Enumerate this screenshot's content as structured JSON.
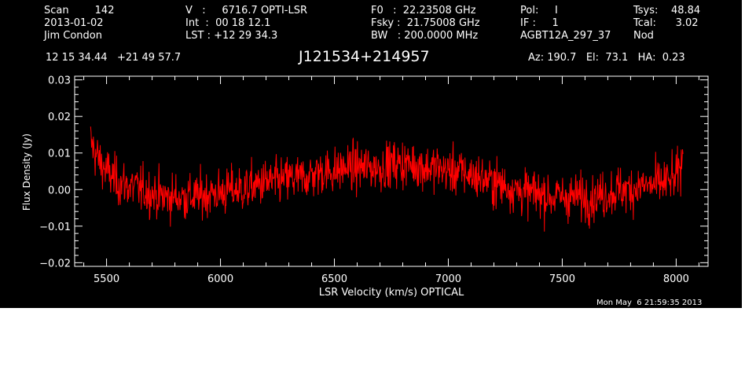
{
  "header": {
    "col1": [
      "Scan        142",
      "2013-01-02",
      "Jim Condon"
    ],
    "col2": [
      "V   :     6716.7 OPTI-LSR",
      "Int  :  00 18 12.1",
      "LST : +12 29 34.3"
    ],
    "col3": [
      "F0   :  22.23508 GHz",
      "Fsky :  21.75008 GHz",
      "BW   : 200.0000 MHz"
    ],
    "col4": [
      "Pol:     I",
      "IF :     1",
      "AGBT12A_297_37"
    ],
    "col5": [
      "Tsys:    48.84",
      "Tcal:      3.02",
      "Nod"
    ],
    "coords": "12 15 34.44   +21 49 57.7",
    "source": "J121534+214957",
    "pointing": "Az: 190.7   El:  73.1   HA:  0.23",
    "timestamp": "Mon May  6 21:59:35 2013"
  },
  "chart_data": {
    "type": "line",
    "title": "J121534+214957",
    "xlabel": "LSR Velocity (km/s) OPTICAL",
    "ylabel": "Flux Density (Jy)",
    "xlim": [
      5360,
      8140
    ],
    "ylim": [
      -0.021,
      0.031
    ],
    "xticks": [
      5500,
      6000,
      6500,
      7000,
      7500,
      8000
    ],
    "xtick_labels": [
      "5500",
      "6000",
      "6500",
      "7000",
      "7500",
      "8000"
    ],
    "yticks": [
      -0.02,
      -0.01,
      0.0,
      0.01,
      0.02,
      0.03
    ],
    "ytick_labels": [
      "−0.02",
      "−0.01",
      "0.00",
      "0.01",
      "0.02",
      "0.03"
    ],
    "x_range": [
      5430,
      8030
    ],
    "series": [
      {
        "color": "#ff0000",
        "x": [
          5430,
          5450,
          5475,
          5500,
          5550,
          5600,
          5650,
          5700,
          5750,
          5800,
          5850,
          5900,
          5950,
          6000,
          6050,
          6100,
          6150,
          6200,
          6250,
          6300,
          6350,
          6400,
          6450,
          6500,
          6550,
          6600,
          6650,
          6700,
          6750,
          6800,
          6850,
          6900,
          6950,
          7000,
          7050,
          7100,
          7150,
          7200,
          7250,
          7300,
          7350,
          7400,
          7450,
          7500,
          7550,
          7600,
          7650,
          7700,
          7750,
          7800,
          7850,
          7900,
          7950,
          8000,
          8030
        ],
        "baseline": [
          0.013,
          0.01,
          0.007,
          0.005,
          0.002,
          0.001,
          0.0,
          -0.001,
          -0.002,
          -0.002,
          -0.002,
          -0.002,
          -0.001,
          -0.001,
          0.0,
          0.0,
          0.001,
          0.002,
          0.002,
          0.003,
          0.003,
          0.004,
          0.005,
          0.005,
          0.006,
          0.006,
          0.006,
          0.006,
          0.007,
          0.007,
          0.007,
          0.006,
          0.006,
          0.005,
          0.005,
          0.004,
          0.003,
          0.002,
          0.001,
          0.0,
          -0.001,
          -0.001,
          -0.002,
          -0.002,
          -0.002,
          -0.002,
          -0.002,
          -0.001,
          0.0,
          0.0,
          0.001,
          0.001,
          0.002,
          0.003,
          0.008
        ],
        "noise_rms": 0.0045,
        "samples": 1300
      }
    ]
  }
}
